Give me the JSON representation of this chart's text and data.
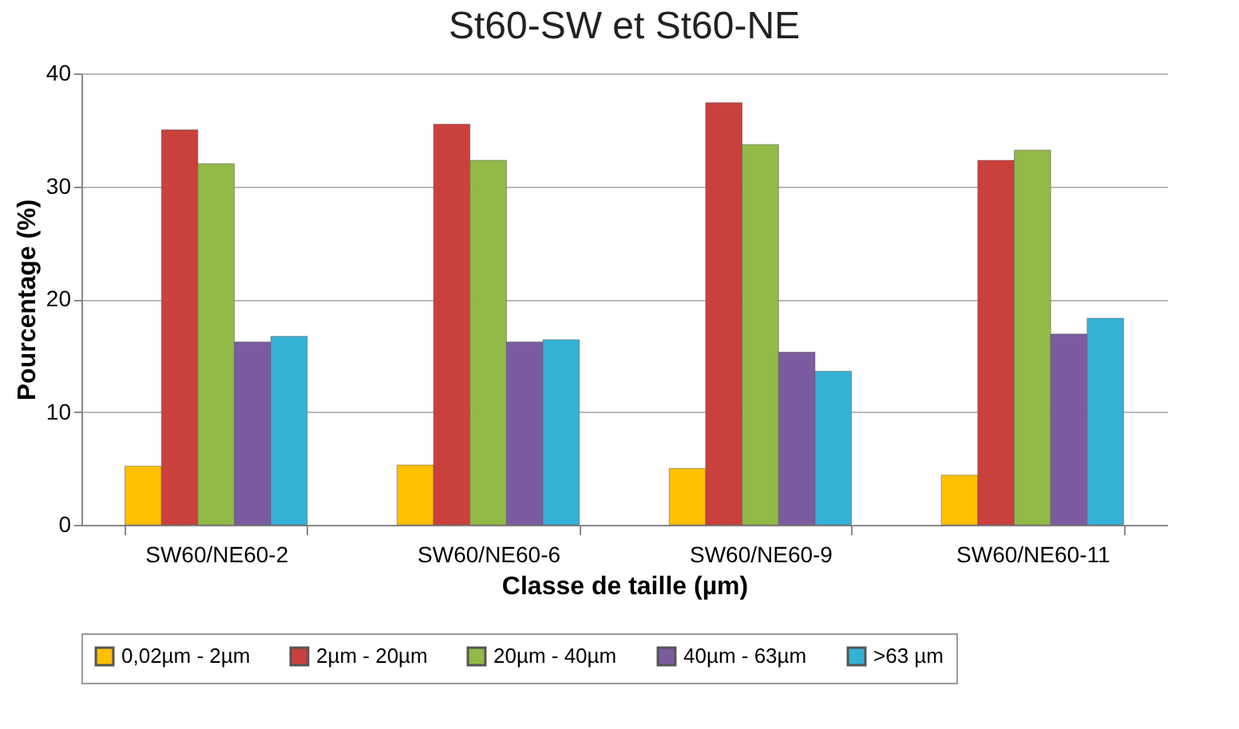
{
  "chart_data": {
    "type": "bar",
    "title": "St60-SW et St60-NE",
    "xlabel": "Classe de taille (µm)",
    "ylabel": "Pourcentage (%)",
    "categories": [
      "SW60/NE60-2",
      "SW60/NE60-6",
      "SW60/NE60-9",
      "SW60/NE60-11"
    ],
    "series": [
      {
        "name": "0,02µm - 2µm",
        "color": "#ffc000",
        "values": [
          5.2,
          5.3,
          5.0,
          4.4
        ]
      },
      {
        "name": "2µm - 20µm",
        "color": "#c9403d",
        "values": [
          35.0,
          35.5,
          37.4,
          32.3
        ]
      },
      {
        "name": "20µm - 40µm",
        "color": "#93b947",
        "values": [
          32.0,
          32.3,
          33.7,
          33.2
        ]
      },
      {
        "name": "40µm - 63µm",
        "color": "#7b5ca0",
        "values": [
          16.2,
          16.2,
          15.3,
          16.9
        ]
      },
      {
        "name": ">63 µm",
        "color": "#36b1d6",
        "values": [
          16.7,
          16.4,
          13.6,
          18.3
        ]
      }
    ],
    "ylim": [
      0,
      40
    ],
    "yticks": [
      0,
      10,
      20,
      30,
      40
    ],
    "grid": "y",
    "legend": "bottom"
  }
}
